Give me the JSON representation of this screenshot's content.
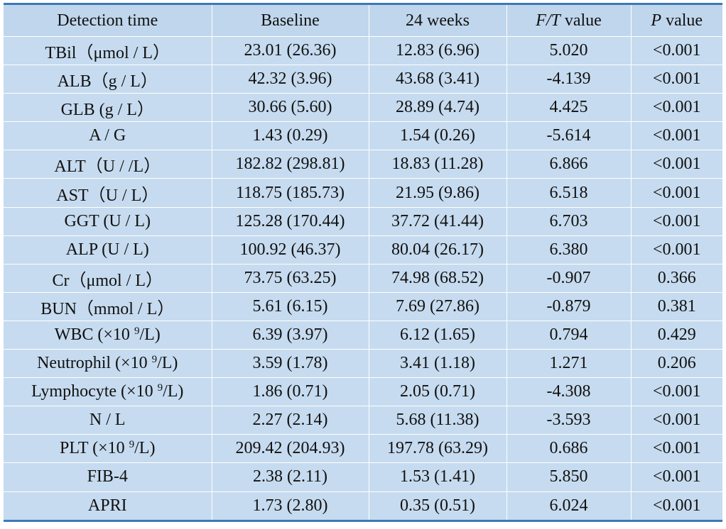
{
  "table": {
    "header": [
      "Detection time",
      "Baseline",
      "24 weeks",
      {
        "em": "F/T",
        "text": "value"
      },
      {
        "em": "P",
        "text": "value"
      }
    ],
    "rows": [
      [
        "TBil（μmol / L）",
        "23.01 (26.36)",
        "12.83 (6.96)",
        "5.020",
        "<0.001"
      ],
      [
        "ALB（g / L）",
        "42.32 (3.96)",
        "43.68 (3.41)",
        "-4.139",
        "<0.001"
      ],
      [
        "GLB (g / L）",
        "30.66 (5.60)",
        "28.89 (4.74)",
        "4.425",
        "<0.001"
      ],
      [
        "A / G",
        "1.43 (0.29)",
        "1.54 (0.26)",
        "-5.614",
        "<0.001"
      ],
      [
        "ALT（U / /L）",
        "182.82 (298.81)",
        "18.83 (11.28)",
        "6.866",
        "<0.001"
      ],
      [
        "AST（U / L）",
        "118.75 (185.73)",
        "21.95 (9.86)",
        "6.518",
        "<0.001"
      ],
      [
        "GGT (U / L)",
        "125.28 (170.44)",
        "37.72 (41.44)",
        "6.703",
        "<0.001"
      ],
      [
        "ALP (U / L)",
        "100.92 (46.37)",
        "80.04 (26.17)",
        "6.380",
        "<0.001"
      ],
      [
        "Cr（μmol / L）",
        "73.75 (63.25)",
        "74.98 (68.52)",
        "-0.907",
        "0.366"
      ],
      [
        "BUN（mmol / L）",
        "5.61 (6.15)",
        "7.69 (27.86)",
        "-0.879",
        "0.381"
      ],
      [
        {
          "text": "WBC (×10",
          "sup": "9",
          "tail": "/L)"
        },
        "6.39 (3.97)",
        "6.12 (1.65)",
        "0.794",
        "0.429"
      ],
      [
        {
          "text": "Neutrophil (×10",
          "sup": "9",
          "tail": "/L)"
        },
        "3.59 (1.78)",
        "3.41 (1.18)",
        "1.271",
        "0.206"
      ],
      [
        {
          "text": "Lymphocyte (×10",
          "sup": "9",
          "tail": "/L)"
        },
        "1.86 (0.71)",
        "2.05 (0.71)",
        "-4.308",
        "<0.001"
      ],
      [
        "N / L",
        "2.27 (2.14)",
        "5.68 (11.38)",
        "-3.593",
        "<0.001"
      ],
      [
        {
          "text": "PLT (×10",
          "sup": "9",
          "tail": "/L)"
        },
        "209.42 (204.93)",
        "197.78 (63.29)",
        "0.686",
        "<0.001"
      ],
      [
        "FIB-4",
        "2.38 (2.11)",
        "1.53 (1.41)",
        "5.850",
        "<0.001"
      ],
      [
        "APRI",
        "1.73 (2.80)",
        "0.35 (0.51)",
        "6.024",
        "<0.001"
      ]
    ]
  }
}
